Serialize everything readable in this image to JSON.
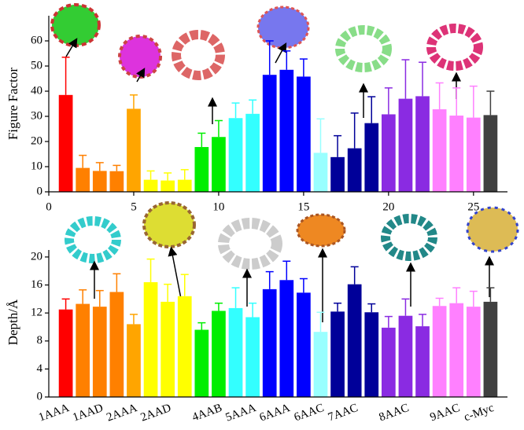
{
  "chart_data": [
    {
      "type": "bar",
      "ylabel": "Figure Factor",
      "x": [
        1,
        2,
        3,
        4,
        5,
        6,
        7,
        8,
        9,
        10,
        11,
        12,
        13,
        14,
        15,
        16,
        17,
        18,
        19,
        20,
        21,
        22,
        23,
        24,
        25,
        26
      ],
      "values": [
        38.5,
        9.5,
        8.3,
        8.2,
        33,
        4.8,
        4.5,
        4.8,
        17.8,
        21.8,
        29.3,
        31,
        46.5,
        48.5,
        45.8,
        15.5,
        13.8,
        17.3,
        27.3,
        30.8,
        37,
        38,
        32.8,
        30.3,
        29.5,
        30.5
      ],
      "errors": [
        15,
        5,
        3.3,
        2.3,
        5.5,
        3.5,
        3,
        4,
        5.5,
        6.5,
        6,
        5.5,
        13.5,
        7.5,
        7,
        13.5,
        8.5,
        14,
        10.5,
        10.5,
        15.5,
        13.5,
        10.5,
        11,
        12.5,
        9.5
      ],
      "colors": [
        "#ff0000",
        "#ff8000",
        "#ff8000",
        "#ff8000",
        "#ffa500",
        "#ffff00",
        "#ffff00",
        "#ffff00",
        "#00ee00",
        "#00ee00",
        "#33ffff",
        "#33ffff",
        "#0000ff",
        "#0000ff",
        "#0000ff",
        "#99ffff",
        "#000099",
        "#000099",
        "#000099",
        "#8a2be2",
        "#8a2be2",
        "#8a2be2",
        "#ff80ff",
        "#ff80ff",
        "#ff80ff",
        "#404040"
      ],
      "xlim": [
        0,
        27
      ],
      "xticks": [
        0,
        5,
        10,
        15,
        20,
        25
      ],
      "ylim": [
        0,
        70
      ],
      "yticks": [
        0,
        10,
        20,
        30,
        40,
        50,
        60
      ]
    },
    {
      "type": "bar",
      "ylabel": "Depth/Å",
      "categories": [
        "1AAA",
        null,
        "1AAD",
        null,
        "2AAA",
        null,
        "2AAD",
        null,
        null,
        "4AAB",
        null,
        "5AAA",
        null,
        "6AAA",
        null,
        "6AAC",
        null,
        "7AAC",
        null,
        null,
        "8AAC",
        null,
        null,
        "9AAC",
        null,
        "c-Myc"
      ],
      "values": [
        12.5,
        13.3,
        12.9,
        15,
        10.4,
        16.4,
        13.6,
        14.4,
        9.6,
        12.3,
        12.7,
        11.4,
        15.4,
        16.7,
        14.9,
        9.3,
        12.2,
        16.1,
        12.1,
        9.9,
        11.6,
        10.1,
        13,
        13.4,
        12.9,
        13.6
      ],
      "errors": [
        1.5,
        2,
        2.3,
        2.6,
        1.4,
        3.3,
        2.5,
        3.1,
        1,
        1.1,
        2.9,
        2,
        2.5,
        2.7,
        2,
        2.8,
        1.2,
        2.5,
        1.2,
        1.6,
        2.4,
        1.7,
        1.1,
        2.2,
        2.2,
        2
      ],
      "colors": [
        "#ff0000",
        "#ff8000",
        "#ff8000",
        "#ff8000",
        "#ffa500",
        "#ffff00",
        "#ffff00",
        "#ffff00",
        "#00ee00",
        "#00ee00",
        "#33ffff",
        "#33ffff",
        "#0000ff",
        "#0000ff",
        "#0000ff",
        "#99ffff",
        "#000099",
        "#000099",
        "#000099",
        "#8a2be2",
        "#8a2be2",
        "#8a2be2",
        "#ff80ff",
        "#ff80ff",
        "#ff80ff",
        "#404040"
      ],
      "ylim": [
        0,
        21
      ],
      "yticks": [
        0,
        4,
        8,
        12,
        16,
        20
      ]
    }
  ]
}
